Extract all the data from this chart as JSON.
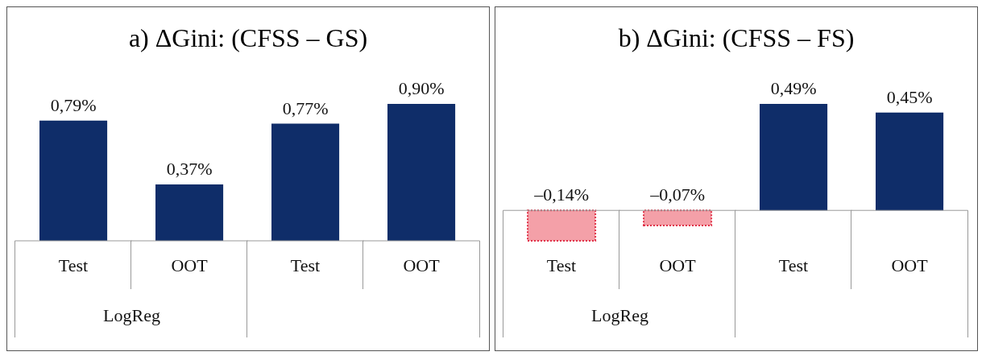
{
  "chart_data": [
    {
      "type": "bar",
      "title": "a) ΔGini: (CFSS – GS)",
      "categories": [
        "Test",
        "OOT",
        "Test",
        "OOT"
      ],
      "values": [
        0.79,
        0.37,
        0.77,
        0.9
      ],
      "value_labels": [
        "0,79%",
        "0,37%",
        "0,77%",
        "0,90%"
      ],
      "colors": [
        "#0f2d69",
        "#0f2d69",
        "#0f2d69",
        "#0f2d69"
      ],
      "annotations": [
        "LogReg"
      ]
    },
    {
      "type": "bar",
      "title": "b) ΔGini: (CFSS – FS)",
      "categories": [
        "Test",
        "OOT",
        "Test",
        "OOT"
      ],
      "values": [
        -0.14,
        -0.07,
        0.49,
        0.45
      ],
      "value_labels": [
        "–0,14%",
        "–0,07%",
        "0,49%",
        "0,45%"
      ],
      "colors": [
        "#f4a0a8",
        "#f4a0a8",
        "#0f2d69",
        "#0f2d69"
      ],
      "annotations": [
        "LogReg"
      ]
    }
  ]
}
